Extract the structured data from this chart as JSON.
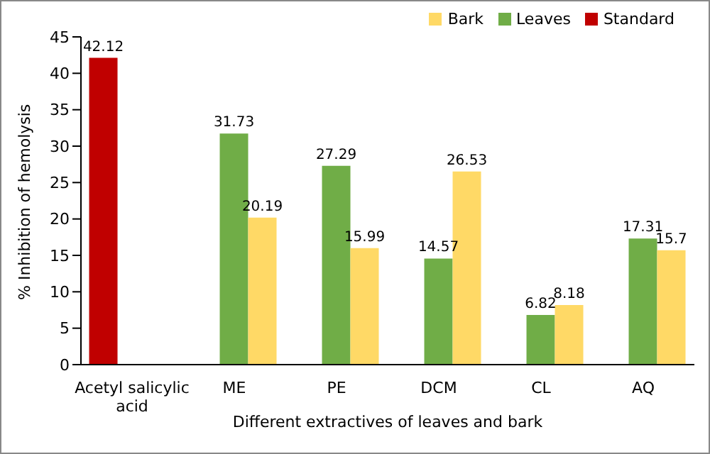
{
  "chart_data": {
    "type": "bar",
    "xlabel": "Different extractives of leaves and bark",
    "ylabel": "% Inhibition of hemolysis",
    "categories": [
      "Acetyl salicylic acid",
      "ME",
      "PE",
      "DCM",
      "CL",
      "AQ"
    ],
    "series": [
      {
        "name": "Standard",
        "color": "#c00000",
        "values": [
          42.12,
          null,
          null,
          null,
          null,
          null
        ]
      },
      {
        "name": "Leaves",
        "color": "#70ad47",
        "values": [
          null,
          31.73,
          27.29,
          14.57,
          6.82,
          17.31
        ]
      },
      {
        "name": "Bark",
        "color": "#ffd966",
        "values": [
          null,
          20.19,
          15.99,
          26.53,
          8.18,
          15.7
        ]
      }
    ],
    "ylim": [
      0,
      45
    ],
    "yticks": [
      0,
      5,
      10,
      15,
      20,
      25,
      30,
      35,
      40,
      45
    ],
    "grid": false,
    "legend": "top right",
    "data_labels": true
  }
}
